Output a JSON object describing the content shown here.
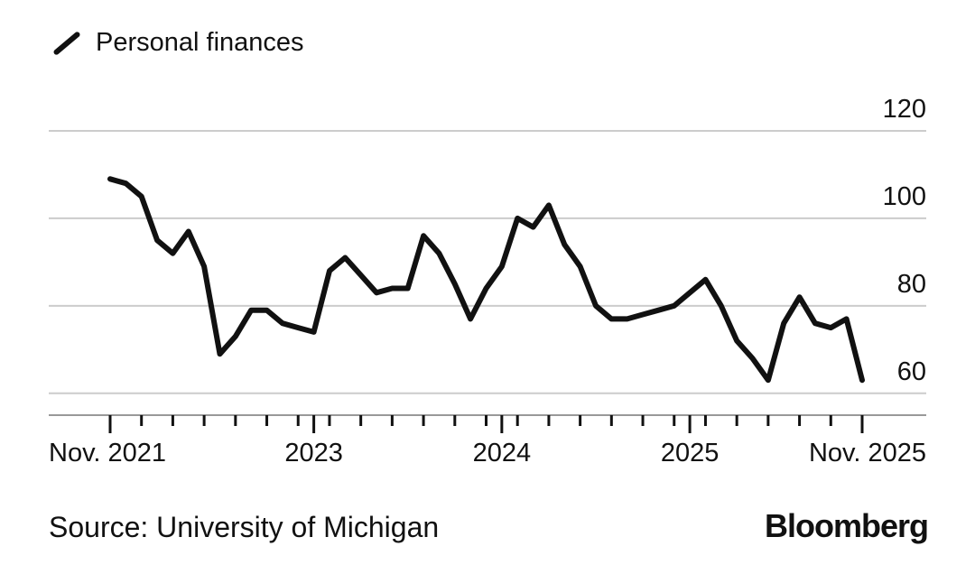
{
  "legend": {
    "label": "Personal finances",
    "icon": "diagonal-line-swatch"
  },
  "source": "Source: University of Michigan",
  "brand": "Bloomberg",
  "colors": {
    "line": "#111111",
    "grid": "#cccccc",
    "axis": "#111111",
    "background": "#ffffff"
  },
  "chart_data": {
    "type": "line",
    "title": "Personal finances",
    "xlabel": "",
    "ylabel": "",
    "ylim": [
      55,
      120
    ],
    "yticks": [
      60,
      80,
      100,
      120
    ],
    "grid": true,
    "series": [
      {
        "name": "Personal finances",
        "start": "2021-11",
        "values": [
          109,
          108,
          105,
          95,
          92,
          97,
          89,
          69,
          73,
          79,
          79,
          76,
          75,
          74,
          88,
          91,
          87,
          83,
          84,
          84,
          96,
          92,
          85,
          77,
          84,
          89,
          100,
          98,
          103,
          94,
          89,
          80,
          77,
          77,
          78,
          79,
          80,
          83,
          86,
          80,
          72,
          68,
          63,
          76,
          82,
          76,
          75,
          77,
          63
        ]
      }
    ],
    "x_labels": [
      {
        "index": 0,
        "label": "Nov. 2021"
      },
      {
        "index": 13,
        "label": "2023"
      },
      {
        "index": 25,
        "label": "2024"
      },
      {
        "index": 37,
        "label": "2025"
      },
      {
        "index": 48,
        "label": "Nov. 2025"
      }
    ]
  }
}
